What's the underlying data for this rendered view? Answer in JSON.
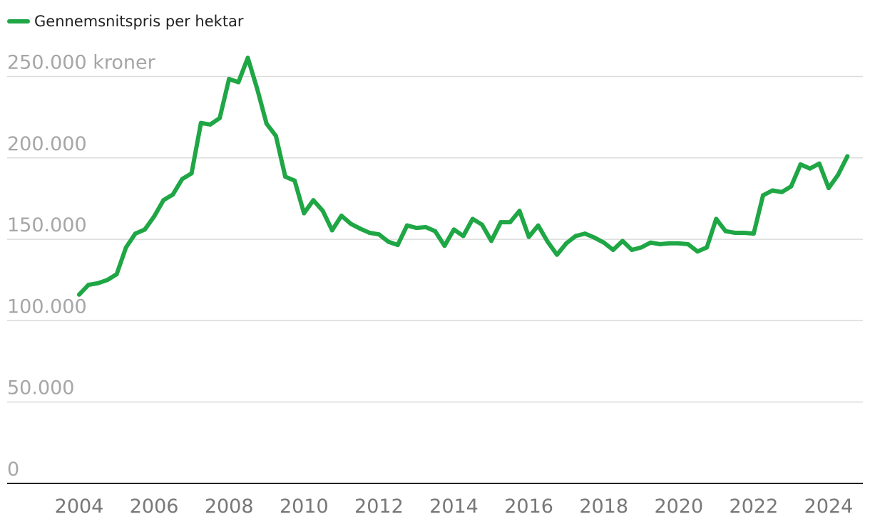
{
  "chart_data": {
    "type": "line",
    "title": "",
    "xlabel": "",
    "ylabel": "",
    "legend": {
      "placement": "top-left",
      "entries": [
        "Gennemsnitspris per hektar"
      ]
    },
    "y_ticks": [
      {
        "value": 0,
        "label": "0"
      },
      {
        "value": 50000,
        "label": "50.000"
      },
      {
        "value": 100000,
        "label": "100.000"
      },
      {
        "value": 150000,
        "label": "150.000"
      },
      {
        "value": 200000,
        "label": "200.000"
      },
      {
        "value": 250000,
        "label": "250.000 kroner"
      }
    ],
    "x_ticks": [
      {
        "value": 2004,
        "label": "2004"
      },
      {
        "value": 2006,
        "label": "2006"
      },
      {
        "value": 2008,
        "label": "2008"
      },
      {
        "value": 2010,
        "label": "2010"
      },
      {
        "value": 2012,
        "label": "2012"
      },
      {
        "value": 2014,
        "label": "2014"
      },
      {
        "value": 2016,
        "label": "2016"
      },
      {
        "value": 2018,
        "label": "2018"
      },
      {
        "value": 2020,
        "label": "2020"
      },
      {
        "value": 2022,
        "label": "2022"
      },
      {
        "value": 2024,
        "label": "2024"
      }
    ],
    "xlim": [
      2003,
      2024.75
    ],
    "ylim": [
      0,
      275000
    ],
    "grid": true,
    "series": [
      {
        "name": "Gennemsnitspris per hektar",
        "color": "#1fa645",
        "x": [
          2004.0,
          2004.25,
          2004.5,
          2004.75,
          2005.0,
          2005.25,
          2005.5,
          2005.75,
          2006.0,
          2006.25,
          2006.5,
          2006.75,
          2007.0,
          2007.25,
          2007.5,
          2007.75,
          2008.0,
          2008.25,
          2008.5,
          2008.75,
          2009.0,
          2009.25,
          2009.5,
          2009.75,
          2010.0,
          2010.25,
          2010.5,
          2010.75,
          2011.0,
          2011.25,
          2011.5,
          2011.75,
          2012.0,
          2012.25,
          2012.5,
          2012.75,
          2013.0,
          2013.25,
          2013.5,
          2013.75,
          2014.0,
          2014.25,
          2014.5,
          2014.75,
          2015.0,
          2015.25,
          2015.5,
          2015.75,
          2016.0,
          2016.25,
          2016.5,
          2016.75,
          2017.0,
          2017.25,
          2017.5,
          2017.75,
          2018.0,
          2018.25,
          2018.5,
          2018.75,
          2019.0,
          2019.25,
          2019.5,
          2019.75,
          2020.0,
          2020.25,
          2020.5,
          2020.75,
          2021.0,
          2021.25,
          2021.5,
          2021.75,
          2022.0,
          2022.25,
          2022.5,
          2022.75,
          2023.0,
          2023.25,
          2023.5,
          2023.75,
          2024.0,
          2024.25,
          2024.5
        ],
        "values": [
          116000,
          122000,
          123000,
          125000,
          128500,
          145000,
          153500,
          156000,
          164000,
          174000,
          177500,
          187000,
          190500,
          221500,
          220500,
          224500,
          248500,
          246500,
          261500,
          242500,
          221000,
          213500,
          188500,
          186000,
          166000,
          174000,
          167500,
          155500,
          164500,
          159500,
          156500,
          154000,
          153000,
          148500,
          146500,
          158500,
          157000,
          157500,
          155000,
          146000,
          156000,
          152000,
          162500,
          159000,
          149000,
          160500,
          160500,
          167500,
          151500,
          158500,
          148500,
          140500,
          147500,
          152000,
          153500,
          151000,
          148000,
          143500,
          149000,
          143500,
          145000,
          148000,
          147000,
          147500,
          147500,
          147000,
          142500,
          145000,
          162500,
          155000,
          154000,
          154000,
          153500,
          177000,
          180000,
          179000,
          182500,
          196000,
          193500,
          196500,
          181500,
          189500,
          201000
        ]
      }
    ]
  }
}
